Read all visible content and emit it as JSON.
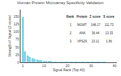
{
  "chart_data": {
    "type": "bar",
    "title": "Human Protein Microarray Specificity Validation",
    "xlabel": "Signal Rank (Top 40)",
    "ylabel": "Strength of Signal (Z-score)",
    "x": [
      1,
      2,
      3,
      4,
      5,
      6,
      7,
      8,
      9,
      10,
      11,
      12,
      13,
      14,
      15,
      16,
      17,
      18,
      19,
      20,
      21,
      22,
      23,
      24,
      25,
      26,
      27,
      28,
      29,
      30,
      31,
      32,
      33,
      34,
      35,
      36,
      37,
      38,
      39,
      40
    ],
    "values": [
      148.17,
      36.44,
      23.11,
      18.0,
      13.5,
      10.5,
      8.5,
      7.0,
      6.0,
      5.2,
      4.5,
      4.0,
      3.6,
      3.3,
      3.0,
      2.8,
      2.6,
      2.4,
      2.2,
      2.1,
      2.0,
      1.9,
      1.8,
      1.75,
      1.7,
      1.65,
      1.6,
      1.55,
      1.5,
      1.45,
      1.4,
      1.35,
      1.3,
      1.25,
      1.2,
      1.15,
      1.1,
      1.05,
      1.0,
      0.95
    ],
    "color": "#85d4e8",
    "xlim": [
      0,
      41
    ],
    "xticks": [
      1,
      10,
      20,
      30,
      40
    ],
    "ylim": [
      0,
      173
    ],
    "yticks": [
      0,
      25,
      50,
      75,
      100,
      125,
      150
    ],
    "grid": false,
    "table": [
      [
        "Rank",
        "Protein",
        "Z score",
        "S score"
      ],
      [
        "1",
        "MGMT",
        "148.17",
        "111.73"
      ],
      [
        "2",
        "ANK",
        "36.44",
        "13.33"
      ],
      [
        "3",
        "VPS29",
        "23.11",
        "1.96"
      ]
    ]
  }
}
